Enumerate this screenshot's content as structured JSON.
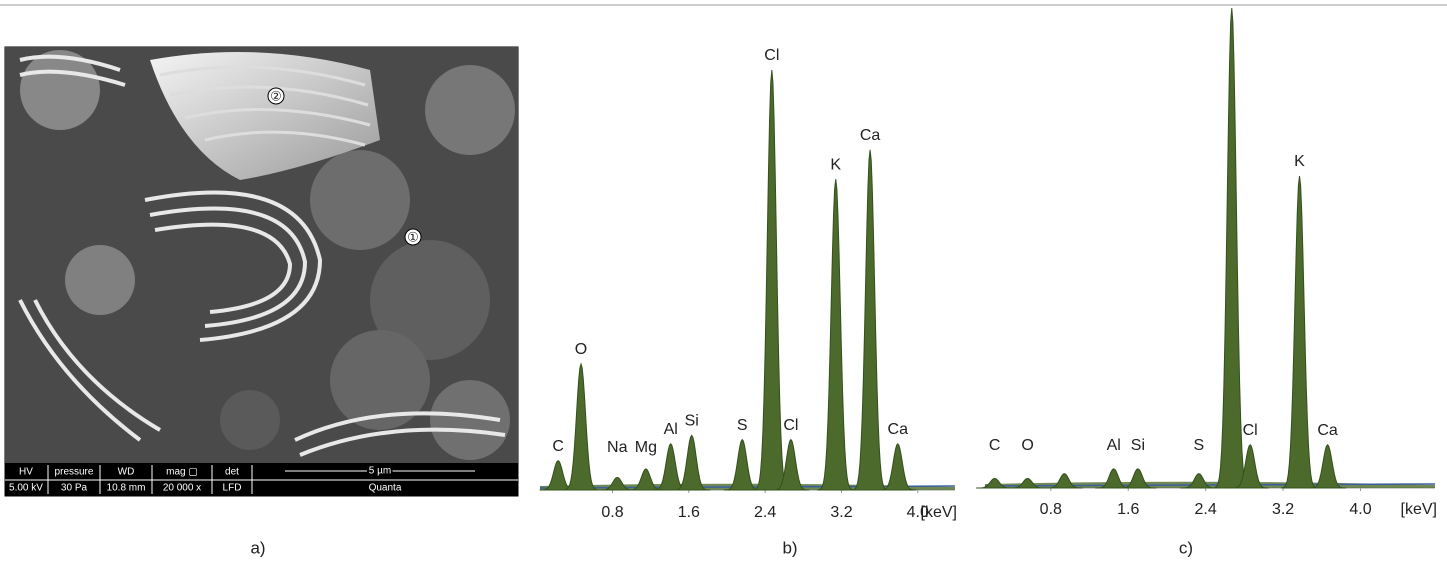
{
  "figure": {
    "panel_labels": [
      "a)",
      "b)",
      "c)"
    ],
    "sem": {
      "markers": [
        "②",
        "①"
      ],
      "info_headers": [
        "HV",
        "pressure",
        "WD",
        "mag ▢",
        "det",
        "5 µm"
      ],
      "info_values": [
        "5.00 kV",
        "30 Pa",
        "10.8 mm",
        "20 000 x",
        "LFD",
        "Quanta"
      ]
    }
  },
  "chart_data": [
    {
      "type": "spectrum",
      "x_label": "[keV]",
      "xlim": [
        0.04,
        4.39
      ],
      "xticks": [
        0.8,
        1.6,
        2.4,
        3.2,
        {
          "value": 4.0,
          "label": "4.0"
        }
      ],
      "ylim": [
        0,
        100
      ],
      "color": "#4b6a2c",
      "peaks": [
        {
          "label": "C",
          "x": 0.23,
          "value": 7
        },
        {
          "label": "O",
          "x": 0.47,
          "value": 30
        },
        {
          "label": "Na",
          "x": 0.85,
          "value": 3
        },
        {
          "label": "Mg",
          "x": 1.15,
          "value": 5
        },
        {
          "label": "Al",
          "x": 1.41,
          "value": 11
        },
        {
          "label": "Si",
          "x": 1.63,
          "value": 13
        },
        {
          "label": "S",
          "x": 2.16,
          "value": 12
        },
        {
          "label": "Cl",
          "x": 2.47,
          "value": 100
        },
        {
          "label": "Cl",
          "x": 2.67,
          "value": 12
        },
        {
          "label": "K",
          "x": 3.14,
          "value": 74
        },
        {
          "label": "Ca",
          "x": 3.5,
          "value": 81
        },
        {
          "label": "Ca",
          "x": 3.79,
          "value": 11
        }
      ]
    },
    {
      "type": "spectrum",
      "x_label": "[keV]",
      "xlim": [
        0.12,
        4.77
      ],
      "xticks": [
        0.8,
        1.6,
        2.4,
        3.2,
        {
          "value": 4.0,
          "label": "4.0"
        }
      ],
      "ylim": [
        0,
        100
      ],
      "color": "#4b6a2c",
      "peaks": [
        {
          "label": "C",
          "x": 0.22,
          "value": 2
        },
        {
          "label": "O",
          "x": 0.56,
          "value": 2
        },
        {
          "x": 0.94,
          "value": 3
        },
        {
          "label": "Al",
          "x": 1.45,
          "value": 4
        },
        {
          "label": "Si",
          "x": 1.7,
          "value": 4
        },
        {
          "label": "S",
          "x": 2.33,
          "value": 3
        },
        {
          "label": "Cl",
          "x": 2.67,
          "value": 100
        },
        {
          "label": "Cl",
          "x": 2.86,
          "value": 9
        },
        {
          "label": "K",
          "x": 3.37,
          "value": 65
        },
        {
          "label": "Ca",
          "x": 3.66,
          "value": 9
        }
      ]
    }
  ]
}
